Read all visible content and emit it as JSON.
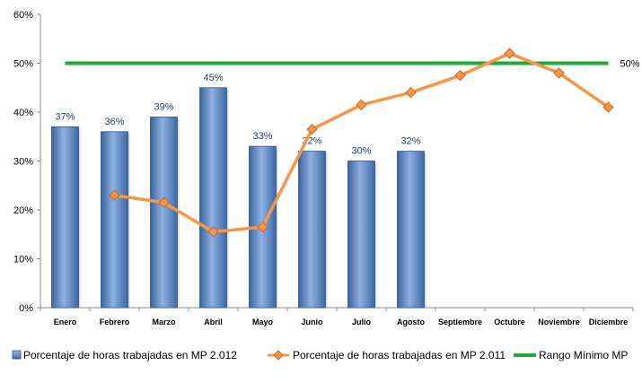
{
  "chart_data": {
    "type": "bar",
    "categories": [
      "Enero",
      "Febrero",
      "Marzo",
      "Abril",
      "Mayo",
      "Junio",
      "Julio",
      "Agosto",
      "Septiembre",
      "Octubre",
      "Noviembre",
      "Diciembre"
    ],
    "ylim": [
      0,
      60
    ],
    "y_ticks": [
      "0%",
      "10%",
      "20%",
      "30%",
      "40%",
      "50%",
      "60%"
    ],
    "grid": false,
    "legend_position": "bottom",
    "series": [
      {
        "name": "Porcentaje de horas trabajadas en MP 2.012",
        "type": "bar",
        "color": "#4f81bd",
        "values": [
          37,
          36,
          39,
          45,
          33,
          32,
          30,
          32,
          null,
          null,
          null,
          null
        ],
        "labels": [
          "37%",
          "36%",
          "39%",
          "45%",
          "33%",
          "32%",
          "30%",
          "32%",
          "",
          "",
          "",
          ""
        ]
      },
      {
        "name": "Porcentaje de horas trabajadas en MP 2.011",
        "type": "line",
        "color": "#f79646",
        "values": [
          null,
          23,
          21.5,
          15.5,
          16.5,
          36.5,
          41.5,
          44,
          47.5,
          52,
          48,
          41
        ]
      },
      {
        "name": "Rango Mínimo MP",
        "type": "line",
        "color": "#1eab3a",
        "values": [
          50,
          50,
          50,
          50,
          50,
          50,
          50,
          50,
          50,
          50,
          50,
          50
        ],
        "end_label": "50%"
      }
    ]
  }
}
